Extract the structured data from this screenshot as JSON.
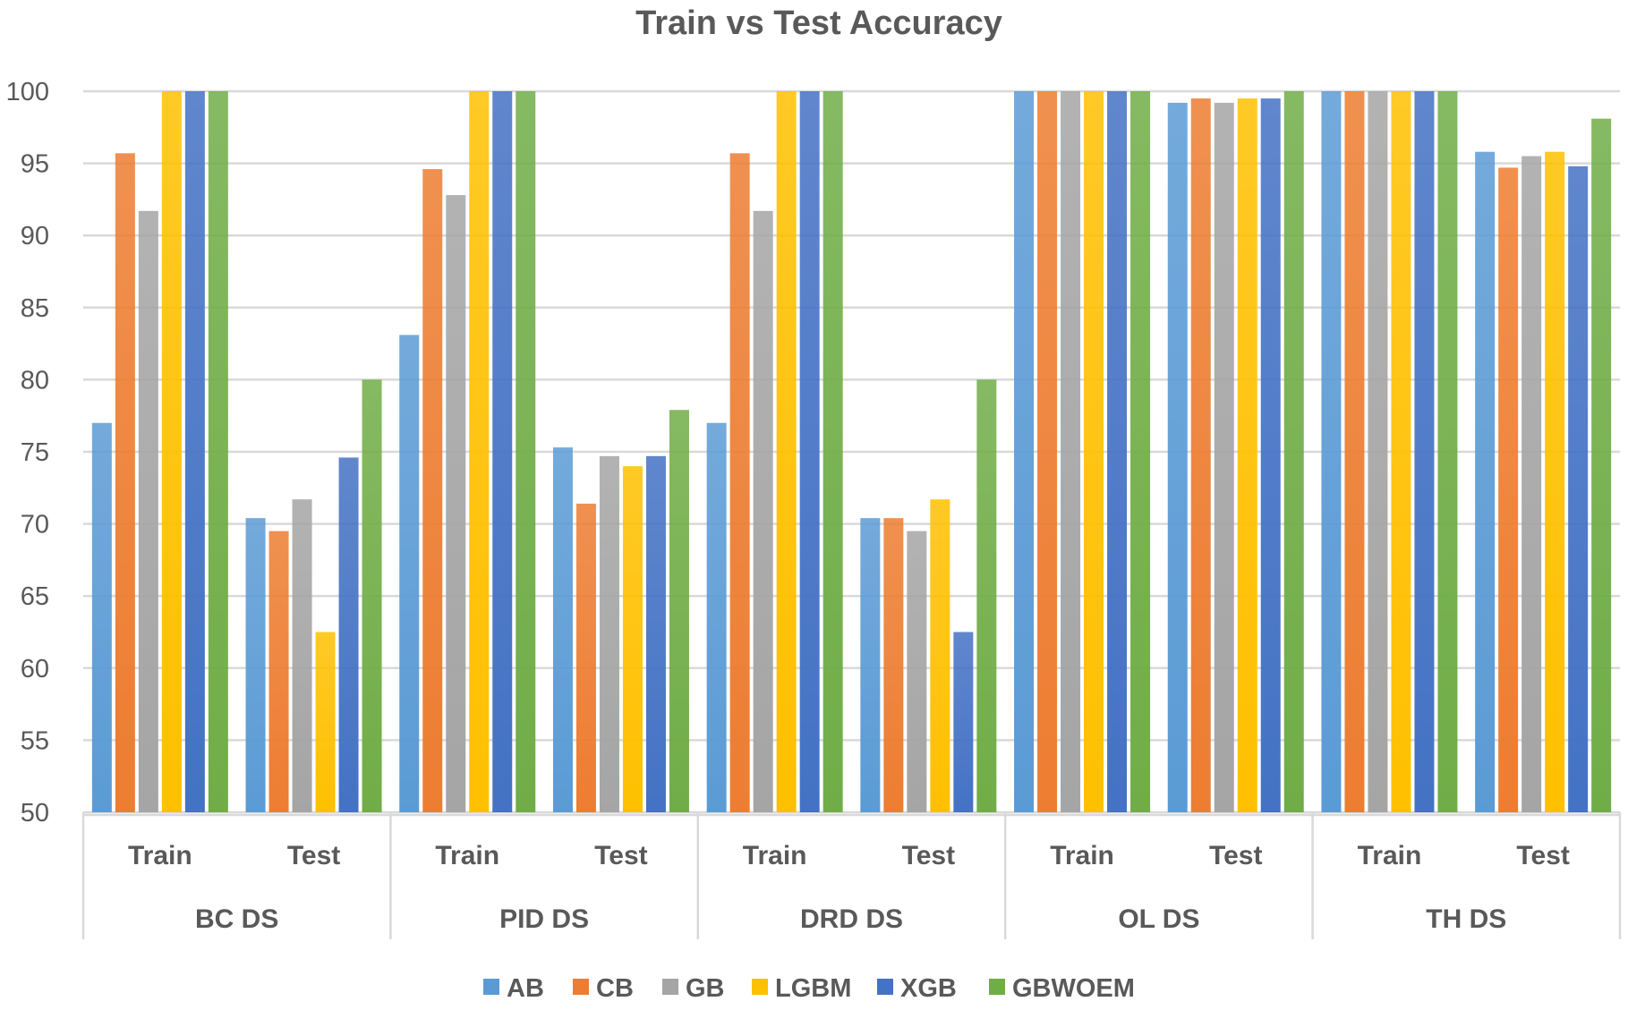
{
  "chart_data": {
    "type": "bar",
    "title": "Train vs Test Accuracy",
    "xlabel": "",
    "ylabel": "",
    "ylim": [
      50,
      100
    ],
    "yticks": [
      "50",
      "55",
      "60",
      "65",
      "70",
      "75",
      "80",
      "85",
      "90",
      "95",
      "100"
    ],
    "grid": true,
    "legend_position": "bottom",
    "groups": [
      "BC DS",
      "PID DS",
      "DRD DS",
      "OL DS",
      "TH DS"
    ],
    "subcategories": [
      "Train",
      "Test"
    ],
    "categories": [
      "BC DS Train",
      "BC DS Test",
      "PID DS Train",
      "PID DS Test",
      "DRD DS Train",
      "DRD DS Test",
      "OL DS Train",
      "OL DS Test",
      "TH DS Train",
      "TH DS Test"
    ],
    "series": [
      {
        "name": "AB",
        "color": "#5B9BD5",
        "values": [
          77.0,
          70.4,
          83.1,
          75.3,
          77.0,
          70.4,
          100,
          99.2,
          100,
          95.8
        ]
      },
      {
        "name": "CB",
        "color": "#ED7D31",
        "values": [
          95.7,
          69.5,
          94.6,
          71.4,
          95.7,
          70.4,
          100,
          99.5,
          100,
          94.7
        ]
      },
      {
        "name": "GB",
        "color": "#A5A5A5",
        "values": [
          91.7,
          71.7,
          92.8,
          74.7,
          91.7,
          69.5,
          100,
          99.2,
          100,
          95.5
        ]
      },
      {
        "name": "LGBM",
        "color": "#FFC000",
        "values": [
          100,
          62.5,
          100,
          74.0,
          100,
          71.7,
          100,
          99.5,
          100,
          95.8
        ]
      },
      {
        "name": "XGB",
        "color": "#4472C4",
        "values": [
          100,
          74.6,
          100,
          74.7,
          100,
          62.5,
          100,
          99.5,
          100,
          94.8
        ]
      },
      {
        "name": "GBWOEM",
        "color": "#70AD47",
        "values": [
          100,
          80.0,
          100,
          77.9,
          100,
          80.0,
          100,
          100,
          100,
          98.1
        ]
      }
    ]
  }
}
